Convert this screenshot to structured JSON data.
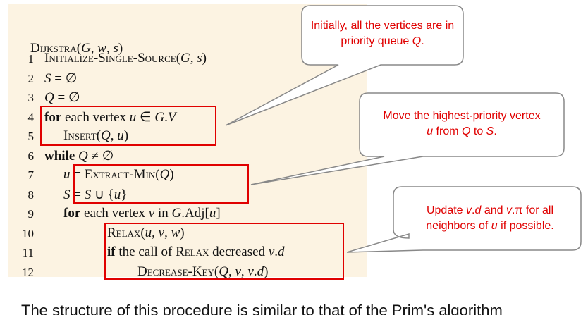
{
  "title": [
    "Dijkstra",
    "(G, w, s)"
  ],
  "lines": [
    {
      "number": "1",
      "parts": [
        "Initialize-Single-Source",
        "(G, s)"
      ]
    },
    {
      "number": "2",
      "parts": [
        "S = ∅"
      ]
    },
    {
      "number": "3",
      "parts": [
        "Q = ∅"
      ]
    },
    {
      "number": "4",
      "parts": [
        "for",
        " each vertex u ∈ G.V"
      ]
    },
    {
      "number": "5",
      "parts": [
        "Insert",
        "(Q, u)"
      ]
    },
    {
      "number": "6",
      "parts": [
        "while",
        " Q ≠ ∅"
      ]
    },
    {
      "number": "7",
      "parts": [
        "u = ",
        "Extract-Min",
        "(Q)"
      ]
    },
    {
      "number": "8",
      "parts": [
        "S = S ∪ {u}"
      ]
    },
    {
      "number": "9",
      "parts": [
        "for",
        " each vertex v in G.Adj[u]"
      ]
    },
    {
      "number": "10",
      "parts": [
        "Relax",
        "(u, v, w)"
      ]
    },
    {
      "number": "11",
      "parts": [
        "if",
        " the call of ",
        "Relax",
        " decreased v.d"
      ]
    },
    {
      "number": "12",
      "parts": [
        "Decrease-Key",
        "(Q, v, v.d)"
      ]
    }
  ],
  "callouts": [
    "Initially, all the vertices are in priority queue Q.",
    "Move the highest-priority vertex u from Q to S.",
    "Update v.d and v.π for all neighbors of u if possible."
  ],
  "footer": "The structure of this procedure is similar to that of the Prim's algorithm"
}
